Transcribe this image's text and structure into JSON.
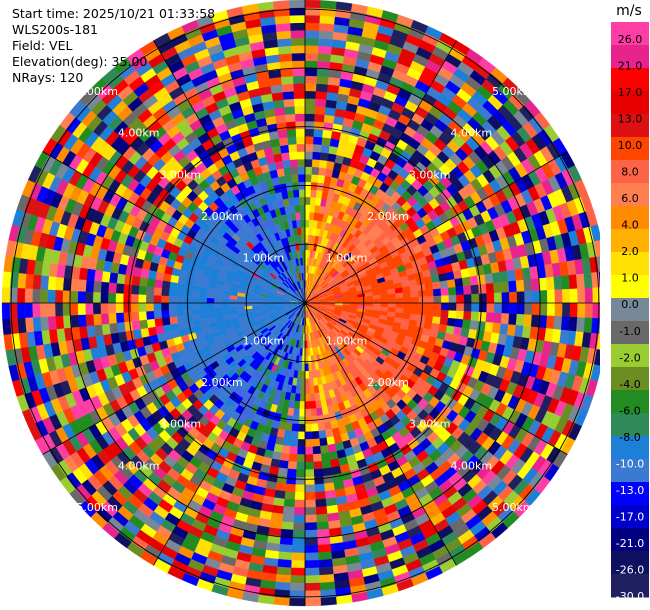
{
  "info": {
    "start_time": "Start time: 2025/10/21 01:33:58",
    "instrument": "WLS200s-181",
    "field": "Field: VEL",
    "elevation": "Elevation(deg): 35.00",
    "nrays": "NRays: 120"
  },
  "chart_data": {
    "type": "heatmap",
    "projection": "polar-ppi",
    "field": "VEL",
    "nrays": 120,
    "max_range_km": 5.0,
    "range_rings_km": [
      1.0,
      2.0,
      3.0,
      4.0,
      5.0
    ],
    "ring_labels": [
      "1.00km",
      "2.00km",
      "3.00km",
      "4.00km",
      "5.00km"
    ],
    "spokes_deg": [
      0,
      30,
      60,
      90,
      120,
      150,
      180,
      210,
      240,
      270,
      300,
      330
    ],
    "colorbar": {
      "unit": "m/s",
      "ticks": [
        "26.0",
        "21.0",
        "17.0",
        "13.0",
        "10.0",
        "8.0",
        "6.0",
        "4.0",
        "2.0",
        "1.0",
        "0.0",
        "-1.0",
        "-2.0",
        "-4.0",
        "-6.0",
        "-8.0",
        "-10.0",
        "-13.0",
        "-17.0",
        "-21.0",
        "-26.0",
        "-30.0"
      ],
      "colors": [
        "#ff3ea5",
        "#e8238d",
        "#ff0000",
        "#e80000",
        "#dd1111",
        "#ff4500",
        "#ff6347",
        "#ff7f50",
        "#ff8c00",
        "#ffb000",
        "#ffe000",
        "#ffff00",
        "#778899",
        "#696969",
        "#9acd32",
        "#6b8e23",
        "#228b22",
        "#2e8b57",
        "#1e7fd8",
        "#3a7ad1",
        "#0000ff",
        "#0000cd",
        "#000080",
        "#101060",
        "#202060"
      ]
    },
    "velocity_pattern": {
      "description_none": "",
      "inner_range_km": 2.1,
      "approaching_side_deg": 270,
      "receding_side_deg": 90
    }
  }
}
